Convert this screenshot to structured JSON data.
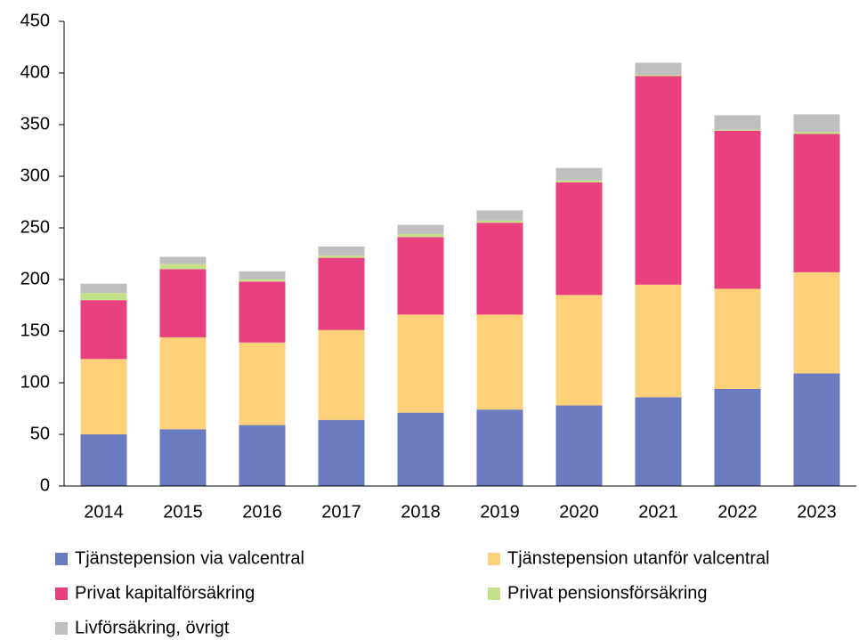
{
  "chart_data": {
    "type": "stacked_bar",
    "categories": [
      "2014",
      "2015",
      "2016",
      "2017",
      "2018",
      "2019",
      "2020",
      "2021",
      "2022",
      "2023"
    ],
    "series": [
      {
        "name": "Tjänstepension via valcentral",
        "color": "#6a7bbf",
        "values": [
          50,
          55,
          59,
          64,
          71,
          74,
          78,
          86,
          94,
          109
        ]
      },
      {
        "name": "Tjänstepension utanför valcentral",
        "color": "#fdd17a",
        "values": [
          73,
          89,
          80,
          87,
          95,
          92,
          107,
          109,
          97,
          98
        ]
      },
      {
        "name": "Privat kapitalförsäkring",
        "color": "#e94080",
        "values": [
          57,
          66,
          59,
          70,
          75,
          89,
          109,
          202,
          153,
          134
        ]
      },
      {
        "name": "Privat pensionsförsäkring",
        "color": "#c5e08a",
        "values": [
          7,
          5,
          2,
          2,
          3,
          2,
          2,
          1,
          1,
          2
        ]
      },
      {
        "name": "Livförsäkring, övrigt",
        "color": "#bfbfbf",
        "values": [
          9,
          7,
          8,
          9,
          9,
          10,
          12,
          12,
          14,
          17
        ]
      }
    ],
    "ylim": [
      0,
      450
    ],
    "yticks": [
      0,
      50,
      100,
      150,
      200,
      250,
      300,
      350,
      400,
      450
    ]
  }
}
